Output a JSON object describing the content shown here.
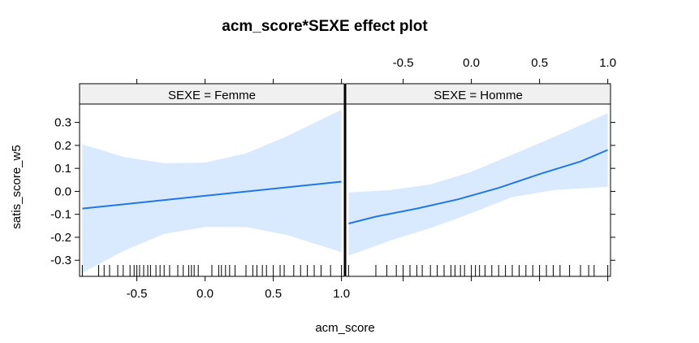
{
  "chart_data": {
    "type": "line",
    "title": "acm_score*SEXE effect plot",
    "xlabel": "acm_score",
    "ylabel": "satis_score_w5",
    "xlim": [
      -0.92,
      1.02
    ],
    "ylim": [
      -0.37,
      0.38
    ],
    "x_ticks": [
      -0.5,
      0.0,
      0.5,
      1.0
    ],
    "x_tick_labels": [
      "-0.5",
      "0.0",
      "0.5",
      "1.0"
    ],
    "y_ticks": [
      -0.3,
      -0.2,
      -0.1,
      0.0,
      0.1,
      0.2,
      0.3
    ],
    "y_tick_labels": [
      "-0.3",
      "-0.2",
      "-0.1",
      "0.0",
      "0.1",
      "0.2",
      "0.3"
    ],
    "line_color": "#1f78e6",
    "band_color": "#d9eaff",
    "panels": [
      {
        "strip": "SEXE = Femme",
        "fit": {
          "x": [
            -0.9,
            1.0
          ],
          "y": [
            -0.075,
            0.042
          ]
        },
        "band": {
          "x": [
            -0.9,
            -0.6,
            -0.3,
            0.0,
            0.3,
            0.6,
            1.0
          ],
          "upper": [
            0.205,
            0.15,
            0.122,
            0.125,
            0.165,
            0.24,
            0.355
          ],
          "lower": [
            -0.355,
            -0.26,
            -0.185,
            -0.155,
            -0.155,
            -0.19,
            -0.265
          ]
        },
        "rug": [
          -0.9,
          -0.78,
          -0.74,
          -0.7,
          -0.64,
          -0.6,
          -0.55,
          -0.52,
          -0.5,
          -0.48,
          -0.45,
          -0.42,
          -0.4,
          -0.36,
          -0.33,
          -0.3,
          -0.26,
          -0.2,
          -0.16,
          -0.12,
          -0.1,
          -0.08,
          -0.05,
          0.05,
          0.1,
          0.12,
          0.15,
          0.18,
          0.22,
          0.3,
          0.35,
          0.38,
          0.42,
          0.45,
          0.5,
          0.55,
          0.58,
          0.65,
          0.7,
          0.75,
          0.8,
          0.85,
          0.92,
          1.0
        ]
      },
      {
        "strip": "SEXE = Homme",
        "fit": {
          "x": [
            -0.9,
            -0.7,
            -0.4,
            -0.1,
            0.2,
            0.5,
            0.8,
            1.0
          ],
          "y": [
            -0.14,
            -0.11,
            -0.075,
            -0.035,
            0.015,
            0.075,
            0.13,
            0.18
          ]
        },
        "band": {
          "x": [
            -0.9,
            -0.6,
            -0.3,
            0.0,
            0.3,
            0.6,
            1.0
          ],
          "upper": [
            -0.005,
            0.005,
            0.03,
            0.085,
            0.16,
            0.235,
            0.34
          ],
          "lower": [
            -0.28,
            -0.215,
            -0.16,
            -0.095,
            -0.025,
            0.005,
            0.02
          ]
        },
        "rug": [
          -0.9,
          -0.7,
          -0.62,
          -0.55,
          -0.5,
          -0.45,
          -0.4,
          -0.36,
          -0.3,
          -0.25,
          -0.2,
          -0.15,
          -0.12,
          -0.08,
          -0.05,
          0.0,
          0.03,
          0.06,
          0.1,
          0.15,
          0.2,
          0.25,
          0.3,
          0.35,
          0.4,
          0.45,
          0.5,
          0.55,
          0.6,
          0.65,
          0.72,
          0.8,
          0.86,
          0.9,
          1.0
        ]
      }
    ]
  }
}
